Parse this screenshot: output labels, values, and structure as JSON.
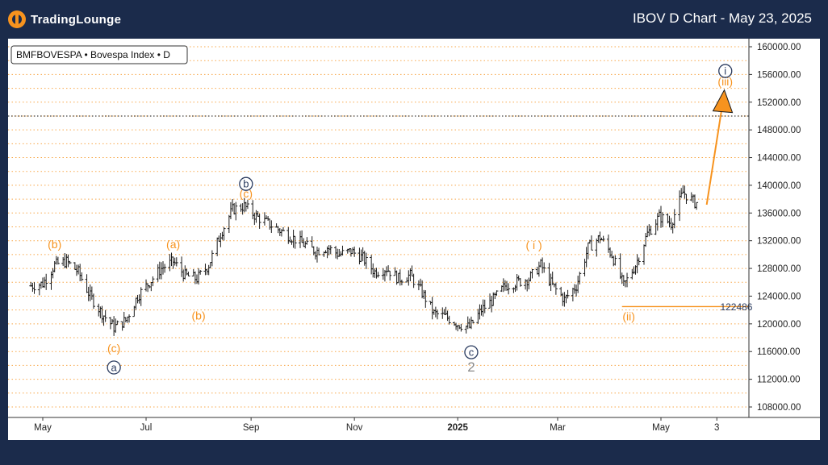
{
  "header": {
    "brand": "TradingLounge",
    "title": "IBOV D Chart - May 23, 2025"
  },
  "chart_data": {
    "type": "line",
    "subtype": "ohlc-bars",
    "symbol_label": "BMFBOVESPA • Bovespa Index • D",
    "x_labels": [
      "May",
      "Jul",
      "Sep",
      "Nov",
      "2025",
      "Mar",
      "May",
      "3"
    ],
    "y_ticks": [
      "160000.00",
      "156000.00",
      "152000.00",
      "148000.00",
      "144000.00",
      "140000.00",
      "136000.00",
      "132000.00",
      "128000.00",
      "124000.00",
      "120000.00",
      "116000.00",
      "112000.00",
      "108000.00"
    ],
    "ylim": [
      106000,
      161000
    ],
    "grid": true,
    "price_label": "122486",
    "price_level": 122486,
    "target_label_level": 150000,
    "series": [
      {
        "values": [
          {
            "d": "2024-04-24",
            "v": 125500
          },
          {
            "d": "2024-05-01",
            "v": 125800
          },
          {
            "d": "2024-05-08",
            "v": 128500
          },
          {
            "d": "2024-05-15",
            "v": 129000
          },
          {
            "d": "2024-05-22",
            "v": 127500
          },
          {
            "d": "2024-05-29",
            "v": 124000
          },
          {
            "d": "2024-06-05",
            "v": 121500
          },
          {
            "d": "2024-06-12",
            "v": 119500
          },
          {
            "d": "2024-06-19",
            "v": 120500
          },
          {
            "d": "2024-06-26",
            "v": 124000
          },
          {
            "d": "2024-07-03",
            "v": 126000
          },
          {
            "d": "2024-07-10",
            "v": 128000
          },
          {
            "d": "2024-07-17",
            "v": 129000
          },
          {
            "d": "2024-07-24",
            "v": 127000
          },
          {
            "d": "2024-07-31",
            "v": 126500
          },
          {
            "d": "2024-08-07",
            "v": 128500
          },
          {
            "d": "2024-08-14",
            "v": 133000
          },
          {
            "d": "2024-08-21",
            "v": 136500
          },
          {
            "d": "2024-08-28",
            "v": 137000
          },
          {
            "d": "2024-09-04",
            "v": 135500
          },
          {
            "d": "2024-09-11",
            "v": 134500
          },
          {
            "d": "2024-09-18",
            "v": 133500
          },
          {
            "d": "2024-09-25",
            "v": 132500
          },
          {
            "d": "2024-10-02",
            "v": 131500
          },
          {
            "d": "2024-10-09",
            "v": 130500
          },
          {
            "d": "2024-10-16",
            "v": 131000
          },
          {
            "d": "2024-10-23",
            "v": 130000
          },
          {
            "d": "2024-10-30",
            "v": 130500
          },
          {
            "d": "2024-11-06",
            "v": 129500
          },
          {
            "d": "2024-11-13",
            "v": 127500
          },
          {
            "d": "2024-11-20",
            "v": 128000
          },
          {
            "d": "2024-11-27",
            "v": 126500
          },
          {
            "d": "2024-12-04",
            "v": 127000
          },
          {
            "d": "2024-12-11",
            "v": 124500
          },
          {
            "d": "2024-12-18",
            "v": 121500
          },
          {
            "d": "2024-12-25",
            "v": 121000
          },
          {
            "d": "2025-01-01",
            "v": 120000
          },
          {
            "d": "2025-01-08",
            "v": 119500
          },
          {
            "d": "2025-01-15",
            "v": 122000
          },
          {
            "d": "2025-01-22",
            "v": 123500
          },
          {
            "d": "2025-01-29",
            "v": 125500
          },
          {
            "d": "2025-02-05",
            "v": 126000
          },
          {
            "d": "2025-02-12",
            "v": 126500
          },
          {
            "d": "2025-02-19",
            "v": 128500
          },
          {
            "d": "2025-02-26",
            "v": 125500
          },
          {
            "d": "2025-03-05",
            "v": 123500
          },
          {
            "d": "2025-03-12",
            "v": 125500
          },
          {
            "d": "2025-03-19",
            "v": 131000
          },
          {
            "d": "2025-03-26",
            "v": 132500
          },
          {
            "d": "2025-04-02",
            "v": 130000
          },
          {
            "d": "2025-04-09",
            "v": 125500
          },
          {
            "d": "2025-04-16",
            "v": 128500
          },
          {
            "d": "2025-04-23",
            "v": 133000
          },
          {
            "d": "2025-04-30",
            "v": 135500
          },
          {
            "d": "2025-05-07",
            "v": 134500
          },
          {
            "d": "2025-05-14",
            "v": 139000
          },
          {
            "d": "2025-05-21",
            "v": 137500
          }
        ]
      }
    ],
    "annotations": [
      {
        "label": "(b)",
        "style": "orange",
        "d": "2024-05-08",
        "v": 131500
      },
      {
        "label": "(c)",
        "style": "orange",
        "d": "2024-06-12",
        "v": 116500
      },
      {
        "label": "a",
        "style": "navy-circle",
        "d": "2024-06-12",
        "v": 113700
      },
      {
        "label": "(a)",
        "style": "orange",
        "d": "2024-07-17",
        "v": 131500
      },
      {
        "label": "(b)",
        "style": "orange",
        "d": "2024-08-01",
        "v": 121200
      },
      {
        "label": "(c)",
        "style": "orange",
        "d": "2024-08-29",
        "v": 138800
      },
      {
        "label": "b",
        "style": "navy-circle",
        "d": "2024-08-29",
        "v": 140200
      },
      {
        "label": "c",
        "style": "navy-circle",
        "d": "2025-01-09",
        "v": 115900
      },
      {
        "label": "2",
        "style": "gray",
        "d": "2025-01-09",
        "v": 113800
      },
      {
        "label": "( i )",
        "style": "orange",
        "d": "2025-02-15",
        "v": 131400
      },
      {
        "label": "(ii)",
        "style": "orange",
        "d": "2025-04-12",
        "v": 121100
      },
      {
        "label": "(iii)",
        "style": "orange",
        "d": "2025-06-08",
        "v": 155000
      },
      {
        "label": "i",
        "style": "navy-circle",
        "d": "2025-06-08",
        "v": 156500
      }
    ],
    "projection": {
      "from": {
        "d": "2025-05-28",
        "v": 137200
      },
      "to": {
        "d": "2025-06-06",
        "v": 151200
      }
    }
  },
  "colors": {
    "background": "#1b2b4b",
    "orange": "#f7931e",
    "navy": "#2a3b5f",
    "bars": "#1a1a1a"
  }
}
